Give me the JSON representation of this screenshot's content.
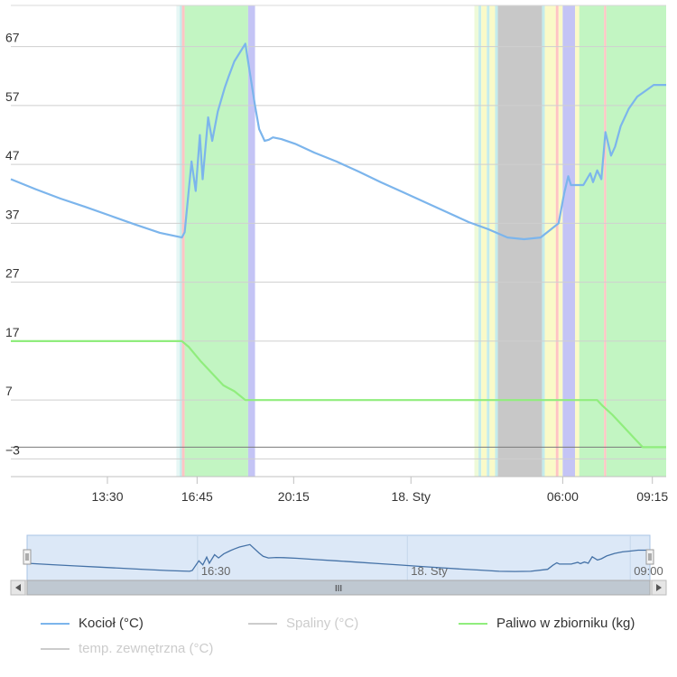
{
  "chart_data": {
    "type": "line",
    "title": "",
    "xlabel": "",
    "ylabel": "",
    "y_ticks": [
      "67",
      "57",
      "47",
      "37",
      "27",
      "17",
      "7",
      "-3"
    ],
    "x_ticks": [
      "13:30",
      "16:45",
      "20:15",
      "18. Sty",
      "06:00",
      "09:15"
    ],
    "ylim": [
      -6,
      74
    ],
    "xlim": [
      10.0,
      33.75
    ],
    "grid": true,
    "legend_position": "bottom",
    "series": [
      {
        "name": "Kocioł (°C)",
        "color": "#7cb5ec",
        "visible": true,
        "x": [
          10.0,
          10.9,
          11.8,
          12.7,
          13.6,
          14.5,
          15.4,
          16.2,
          16.3,
          16.55,
          16.7,
          16.85,
          16.95,
          17.15,
          17.3,
          17.5,
          17.75,
          17.9,
          18.1,
          18.5,
          18.85,
          19.0,
          19.2,
          19.35,
          19.5,
          19.8,
          20.3,
          21.0,
          21.8,
          22.6,
          23.4,
          24.2,
          25.0,
          25.8,
          26.6,
          27.3,
          28.0,
          28.6,
          29.2,
          29.85,
          30.05,
          30.2,
          30.3,
          30.5,
          30.75,
          31.0,
          31.1,
          31.25,
          31.4,
          31.55,
          31.75,
          31.9,
          32.1,
          32.4,
          32.7,
          33.0,
          33.3,
          33.5,
          33.75
        ],
        "y": [
          44.5,
          42.8,
          41.2,
          39.8,
          38.3,
          36.8,
          35.4,
          34.6,
          35.5,
          47.5,
          42.5,
          52.0,
          44.5,
          55.0,
          51.0,
          56.0,
          60.0,
          62.0,
          64.5,
          67.5,
          57.0,
          53.0,
          51.0,
          51.2,
          51.6,
          51.3,
          50.5,
          49.0,
          47.5,
          45.8,
          44.0,
          42.3,
          40.6,
          38.9,
          37.2,
          36.0,
          34.6,
          34.3,
          34.6,
          37.0,
          42.0,
          45.0,
          43.5,
          43.5,
          43.5,
          45.5,
          44.0,
          46.0,
          44.5,
          52.5,
          48.5,
          50.0,
          53.5,
          56.5,
          58.5,
          59.5,
          60.5,
          60.5,
          60.5
        ]
      },
      {
        "name": "Spaliny (°C)",
        "color": "#cccccc",
        "visible": false
      },
      {
        "name": "Paliwo w zbiorniku (kg)",
        "color": "#90ed7d",
        "visible": true,
        "x": [
          10.0,
          16.2,
          16.45,
          16.9,
          17.3,
          17.7,
          18.1,
          18.5,
          18.7,
          20.5,
          25.0,
          31.25,
          31.45,
          31.8,
          32.2,
          32.6,
          32.9,
          33.0,
          33.75
        ],
        "y": [
          17.0,
          17.0,
          16.0,
          13.5,
          11.5,
          9.5,
          8.5,
          7.0,
          7.0,
          7.0,
          7.0,
          7.0,
          6.0,
          4.5,
          2.5,
          0.5,
          -1.0,
          -1.0,
          -1.0
        ]
      },
      {
        "name": "temp. zewnętrzna (°C)",
        "color": "#cccccc",
        "visible": false
      }
    ],
    "plot_bands": [
      {
        "from": 16.0,
        "to": 16.12,
        "color": "#e6f7f5"
      },
      {
        "from": 16.12,
        "to": 16.2,
        "color": "#c4ecec"
      },
      {
        "from": 16.2,
        "to": 16.3,
        "color": "#ffc4c4"
      },
      {
        "from": 16.3,
        "to": 18.6,
        "color": "#c2f5c2"
      },
      {
        "from": 18.6,
        "to": 18.85,
        "color": "#c4c4f5"
      },
      {
        "from": 26.8,
        "to": 26.95,
        "color": "#eefad8"
      },
      {
        "from": 26.95,
        "to": 27.05,
        "color": "#c4ecec"
      },
      {
        "from": 27.05,
        "to": 27.25,
        "color": "#fafac8"
      },
      {
        "from": 27.25,
        "to": 27.35,
        "color": "#c4ecec"
      },
      {
        "from": 27.35,
        "to": 27.55,
        "color": "#fafac8"
      },
      {
        "from": 27.55,
        "to": 27.65,
        "color": "#c4ecec"
      },
      {
        "from": 27.65,
        "to": 29.25,
        "color": "#c8c8c8"
      },
      {
        "from": 29.25,
        "to": 29.35,
        "color": "#c4ecec"
      },
      {
        "from": 29.35,
        "to": 29.75,
        "color": "#fafac8"
      },
      {
        "from": 29.75,
        "to": 29.85,
        "color": "#ffc4c4"
      },
      {
        "from": 29.85,
        "to": 30.0,
        "color": "#fafac8"
      },
      {
        "from": 30.0,
        "to": 30.45,
        "color": "#c4c4f5"
      },
      {
        "from": 30.45,
        "to": 30.6,
        "color": "#fafac8"
      },
      {
        "from": 30.6,
        "to": 31.5,
        "color": "#c2f5c2"
      },
      {
        "from": 31.5,
        "to": 31.58,
        "color": "#ffc4c4"
      },
      {
        "from": 31.58,
        "to": 33.75,
        "color": "#c2f5c2"
      }
    ]
  },
  "navigator": {
    "labels": [
      "16:30",
      "18. Sty",
      "09:00"
    ],
    "scrollbar_grip": "III"
  }
}
